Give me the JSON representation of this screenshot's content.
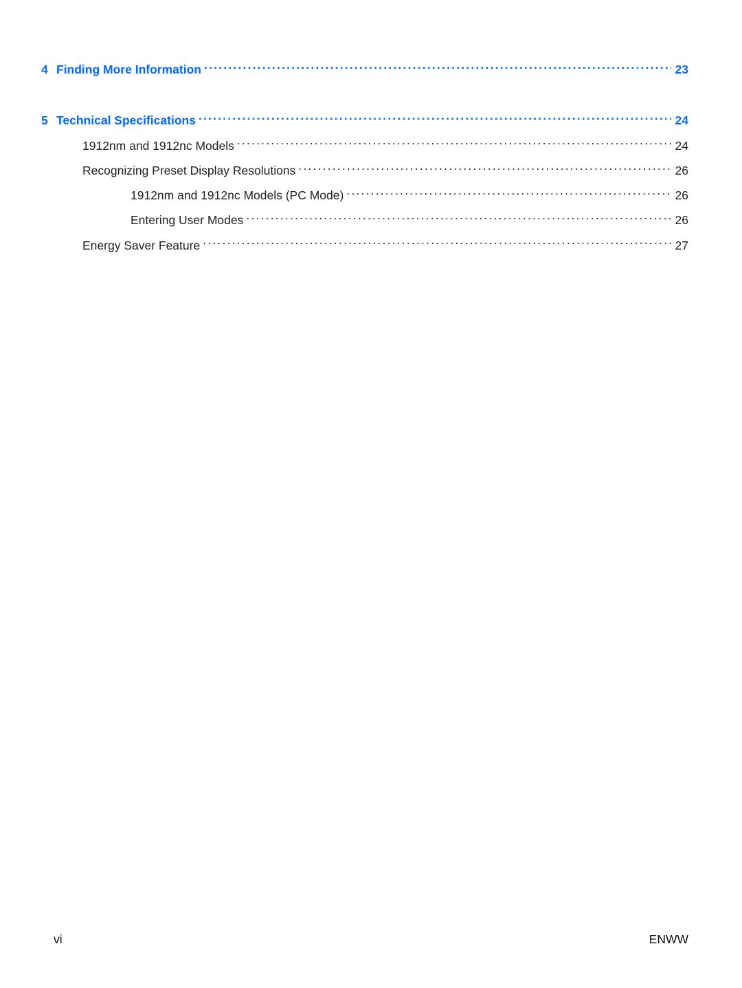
{
  "colors": {
    "link": "#0069ff",
    "text": "#222222",
    "background": "#ffffff"
  },
  "typography": {
    "body_fontsize_pt": 13,
    "chapter_weight": 700,
    "sub_weight": 400
  },
  "toc": {
    "sections": [
      {
        "number": "4",
        "title": "Finding More Information",
        "page": "23",
        "subs": []
      },
      {
        "number": "5",
        "title": "Technical Specifications",
        "page": "24",
        "subs": [
          {
            "indent": 1,
            "title": "1912nm and 1912nc Models",
            "page": "24"
          },
          {
            "indent": 1,
            "title": "Recognizing Preset Display Resolutions",
            "page": "26"
          },
          {
            "indent": 2,
            "title": "1912nm and 1912nc Models (PC Mode)",
            "page": "26"
          },
          {
            "indent": 2,
            "title": "Entering User Modes",
            "page": "26"
          },
          {
            "indent": 1,
            "title": "Energy Saver Feature",
            "page": "27"
          }
        ]
      }
    ]
  },
  "footer": {
    "left": "vi",
    "right": "ENWW"
  }
}
